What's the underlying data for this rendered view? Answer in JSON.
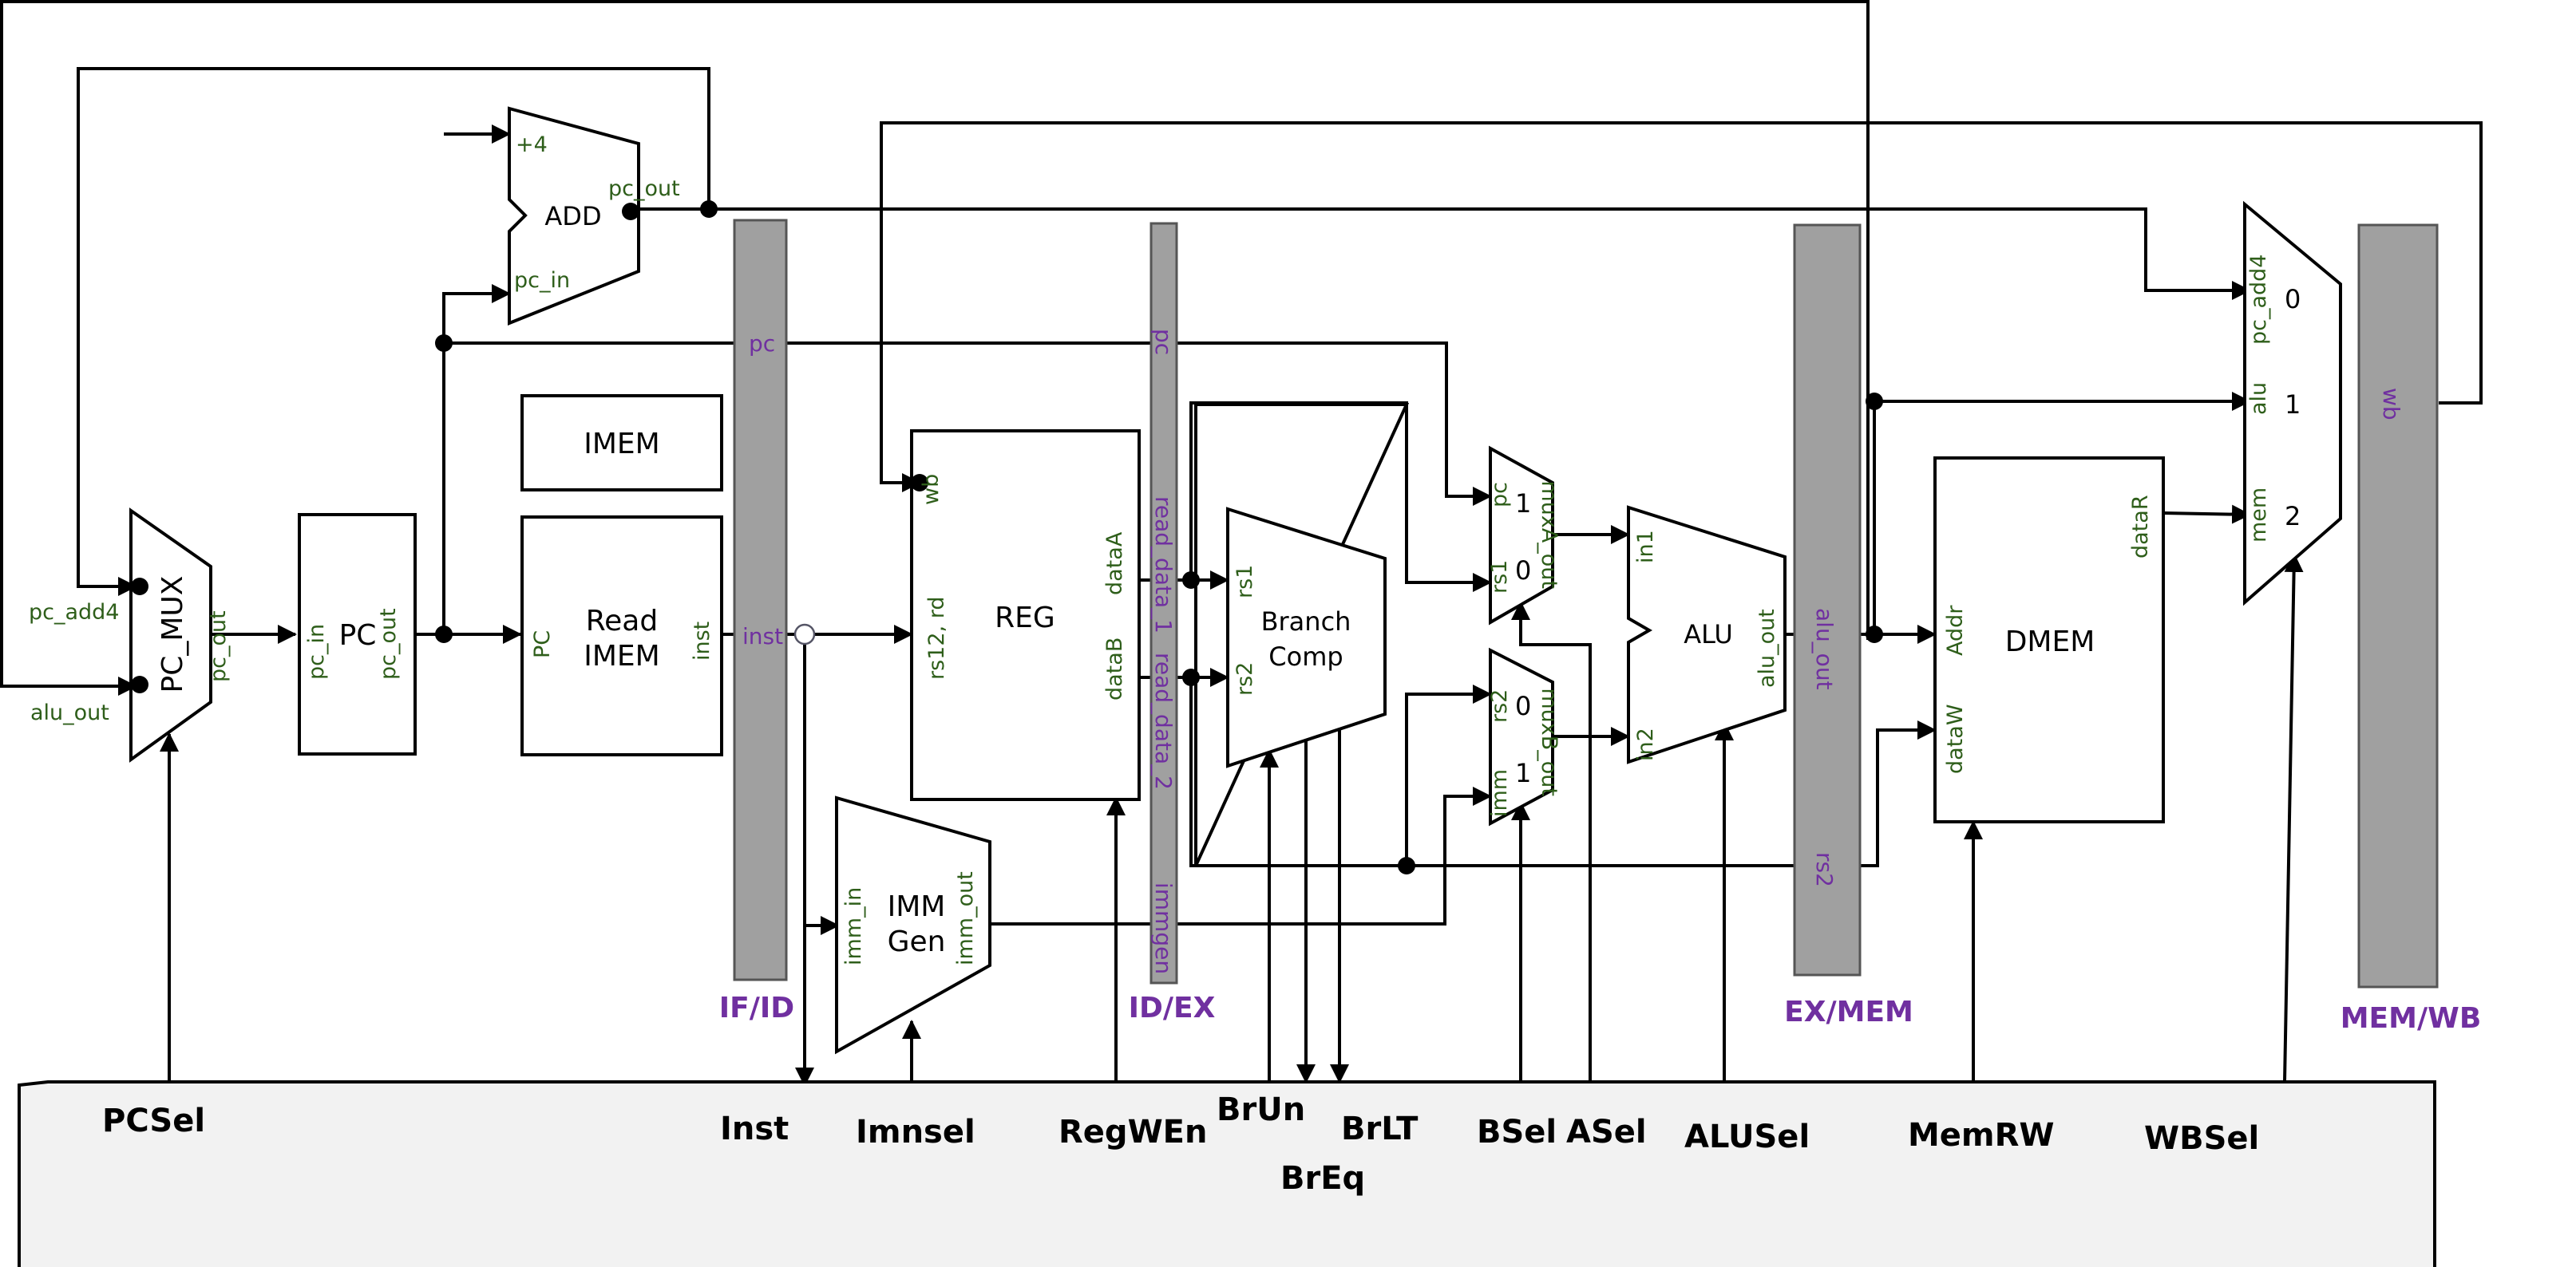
{
  "blocks": {
    "pc_mux": "PC_MUX",
    "pc": "PC",
    "add": "ADD",
    "imem": "IMEM",
    "read_imem_line1": "Read",
    "read_imem_line2": "IMEM",
    "reg": "REG",
    "imm_gen_line1": "IMM",
    "imm_gen_line2": "Gen",
    "branch_comp_line1": "Branch",
    "branch_comp_line2": "Comp",
    "alu": "ALU",
    "dmem": "DMEM"
  },
  "ports": {
    "pc_add4": "pc_add4",
    "alu_out_in": "alu_out",
    "pc_mux_out": "pc_out",
    "pc_in": "pc_in",
    "pc_out": "pc_out",
    "plus4": "+4",
    "add_pc_in": "pc_in",
    "add_pc_out": "pc_out",
    "imem_pc": "PC",
    "imem_inst": "inst",
    "reg_wb": "wb",
    "reg_rs12_rd": "rs12, rd",
    "reg_dataA": "dataA",
    "reg_dataB": "dataB",
    "imm_in": "imm_in",
    "imm_out": "imm_out",
    "bc_rs1": "rs1",
    "bc_rs2": "rs2",
    "muxA_pc": "pc",
    "muxA_rs1": "rs1",
    "muxA_out": "muxA_out",
    "muxA_1": "1",
    "muxA_0": "0",
    "muxB_rs2": "rs2",
    "muxB_imm": "imm",
    "muxB_out": "muxB_out",
    "muxB_0": "0",
    "muxB_1": "1",
    "alu_in1": "in1",
    "alu_in2": "in2",
    "alu_alu_out": "alu_out",
    "dmem_addr": "Addr",
    "dmem_dataW": "dataW",
    "dmem_dataR": "dataR",
    "wbmux_pc_add4": "pc_add4",
    "wbmux_alu": "alu",
    "wbmux_mem": "mem",
    "wbmux_0": "0",
    "wbmux_1": "1",
    "wbmux_2": "2"
  },
  "pipeline_labels": {
    "ifid_pc": "pc",
    "ifid_inst": "inst",
    "idex_pc": "pc",
    "idex_read_data_1": "read_data_1",
    "idex_read_data_2": "read_data_2",
    "idex_immgen": "immgen",
    "exmem_alu_out": "alu_out",
    "exmem_rs2": "rs2",
    "memwb_wb": "wb"
  },
  "stages": {
    "if_id": "IF/ID",
    "id_ex": "ID/EX",
    "ex_mem": "EX/MEM",
    "mem_wb": "MEM/WB"
  },
  "control_signals": {
    "pcsel": "PCSel",
    "inst": "Inst",
    "imnsel": "Imnsel",
    "regwen": "RegWEn",
    "brun": "BrUn",
    "brlt": "BrLT",
    "breq": "BrEq",
    "bsel": "BSel",
    "asel": "ASel",
    "alusel": "ALUSel",
    "memrw": "MemRW",
    "wbsel": "WBSel"
  },
  "colors": {
    "wire": "#000000",
    "pipeline_register": "#a0a0a0",
    "port_label": "#2e5e1a",
    "pipeline_label": "#7030a0",
    "control_unit": "#f2f2f2"
  }
}
